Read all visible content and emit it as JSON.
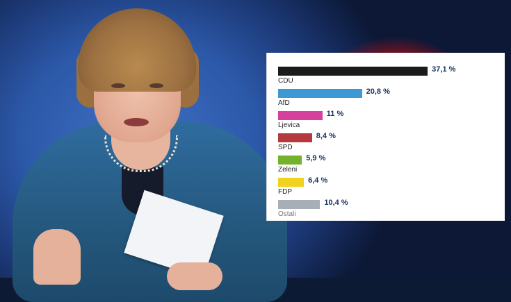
{
  "chart_data": {
    "type": "bar",
    "orientation": "horizontal",
    "categories": [
      "CDU",
      "AfD",
      "Ljevica",
      "SPD",
      "Zeleni",
      "FDP",
      "Ostali"
    ],
    "values": [
      37.1,
      20.8,
      11,
      8.4,
      5.9,
      6.4,
      10.4
    ],
    "value_labels": [
      "37,1 %",
      "20,8 %",
      "11 %",
      "8,4 %",
      "5,9 %",
      "6,4 %",
      "10,4 %"
    ],
    "colors": [
      "#1b1b1b",
      "#3e98d3",
      "#d63f9c",
      "#b43a3f",
      "#74b12d",
      "#f1d21f",
      "#a8aeb6"
    ],
    "xlim": [
      0,
      40
    ],
    "grid": false,
    "legend": "none"
  }
}
